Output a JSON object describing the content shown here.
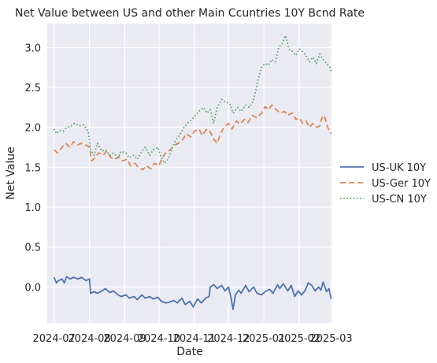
{
  "chart_data": {
    "type": "line",
    "title": "Net Value between US and other Main Ccuntries 10Y Bcnd Rate",
    "xlabel": "Date",
    "ylabel": "Net Value",
    "x_type": "date",
    "xlim": [
      "2024-06-25",
      "2025-03-02"
    ],
    "ylim": [
      -0.45,
      3.3
    ],
    "x_ticks": [
      {
        "value": "2024-07-01",
        "label": "2024-07"
      },
      {
        "value": "2024-08-01",
        "label": "2024-08"
      },
      {
        "value": "2024-09-01",
        "label": "2024-09"
      },
      {
        "value": "2024-10-01",
        "label": "2024-10"
      },
      {
        "value": "2024-11-01",
        "label": "2024-11"
      },
      {
        "value": "2024-12-01",
        "label": "2024-12"
      },
      {
        "value": "2025-01-01",
        "label": "2025-01"
      },
      {
        "value": "2025-02-01",
        "label": "2025-02"
      },
      {
        "value": "2025-03-01",
        "label": "2025-03"
      }
    ],
    "y_ticks": [
      {
        "value": 0.0,
        "label": "0.0"
      },
      {
        "value": 0.5,
        "label": "0.5"
      },
      {
        "value": 1.0,
        "label": "1.0"
      },
      {
        "value": 1.5,
        "label": "1.5"
      },
      {
        "value": 2.0,
        "label": "2.0"
      },
      {
        "value": 2.5,
        "label": "2.5"
      },
      {
        "value": 3.0,
        "label": "3.0"
      }
    ],
    "grid": true,
    "background": "#eaeaf2",
    "legend_position": "right",
    "series": [
      {
        "name": "US-UK 10Y",
        "color": "#4c72b0",
        "style": "solid",
        "points": [
          [
            "2024-07-01",
            0.12
          ],
          [
            "2024-07-03",
            0.05
          ],
          [
            "2024-07-05",
            0.08
          ],
          [
            "2024-07-08",
            0.1
          ],
          [
            "2024-07-10",
            0.05
          ],
          [
            "2024-07-12",
            0.13
          ],
          [
            "2024-07-15",
            0.1
          ],
          [
            "2024-07-18",
            0.12
          ],
          [
            "2024-07-22",
            0.1
          ],
          [
            "2024-07-25",
            0.12
          ],
          [
            "2024-07-29",
            0.08
          ],
          [
            "2024-08-01",
            0.1
          ],
          [
            "2024-08-02",
            -0.08
          ],
          [
            "2024-08-05",
            -0.06
          ],
          [
            "2024-08-08",
            -0.08
          ],
          [
            "2024-08-12",
            -0.05
          ],
          [
            "2024-08-15",
            -0.02
          ],
          [
            "2024-08-19",
            -0.07
          ],
          [
            "2024-08-22",
            -0.05
          ],
          [
            "2024-08-26",
            -0.1
          ],
          [
            "2024-08-29",
            -0.12
          ],
          [
            "2024-09-02",
            -0.1
          ],
          [
            "2024-09-05",
            -0.14
          ],
          [
            "2024-09-09",
            -0.12
          ],
          [
            "2024-09-12",
            -0.16
          ],
          [
            "2024-09-16",
            -0.1
          ],
          [
            "2024-09-19",
            -0.14
          ],
          [
            "2024-09-23",
            -0.12
          ],
          [
            "2024-09-26",
            -0.15
          ],
          [
            "2024-09-30",
            -0.13
          ],
          [
            "2024-10-03",
            -0.18
          ],
          [
            "2024-10-07",
            -0.2
          ],
          [
            "2024-10-10",
            -0.19
          ],
          [
            "2024-10-14",
            -0.17
          ],
          [
            "2024-10-17",
            -0.2
          ],
          [
            "2024-10-21",
            -0.14
          ],
          [
            "2024-10-24",
            -0.22
          ],
          [
            "2024-10-28",
            -0.18
          ],
          [
            "2024-10-31",
            -0.25
          ],
          [
            "2024-11-04",
            -0.15
          ],
          [
            "2024-11-07",
            -0.2
          ],
          [
            "2024-11-11",
            -0.14
          ],
          [
            "2024-11-14",
            -0.12
          ],
          [
            "2024-11-15",
            0.0
          ],
          [
            "2024-11-18",
            0.03
          ],
          [
            "2024-11-21",
            -0.02
          ],
          [
            "2024-11-25",
            0.02
          ],
          [
            "2024-11-28",
            -0.05
          ],
          [
            "2024-12-01",
            0.0
          ],
          [
            "2024-12-03",
            -0.12
          ],
          [
            "2024-12-05",
            -0.28
          ],
          [
            "2024-12-07",
            -0.1
          ],
          [
            "2024-12-10",
            -0.04
          ],
          [
            "2024-12-12",
            -0.08
          ],
          [
            "2024-12-16",
            0.02
          ],
          [
            "2024-12-19",
            -0.06
          ],
          [
            "2024-12-23",
            0.0
          ],
          [
            "2024-12-26",
            -0.08
          ],
          [
            "2024-12-30",
            -0.1
          ],
          [
            "2025-01-02",
            -0.06
          ],
          [
            "2025-01-06",
            -0.03
          ],
          [
            "2025-01-09",
            -0.08
          ],
          [
            "2025-01-13",
            0.03
          ],
          [
            "2025-01-15",
            -0.02
          ],
          [
            "2025-01-18",
            0.04
          ],
          [
            "2025-01-22",
            -0.05
          ],
          [
            "2025-01-25",
            0.02
          ],
          [
            "2025-01-28",
            -0.12
          ],
          [
            "2025-01-31",
            -0.05
          ],
          [
            "2025-02-03",
            -0.1
          ],
          [
            "2025-02-06",
            -0.05
          ],
          [
            "2025-02-09",
            0.05
          ],
          [
            "2025-02-12",
            0.02
          ],
          [
            "2025-02-15",
            -0.05
          ],
          [
            "2025-02-18",
            0.0
          ],
          [
            "2025-02-20",
            -0.04
          ],
          [
            "2025-02-22",
            0.06
          ],
          [
            "2025-02-25",
            -0.06
          ],
          [
            "2025-02-27",
            -0.02
          ],
          [
            "2025-02-29",
            -0.15
          ]
        ]
      },
      {
        "name": "US-Ger 10Y",
        "color": "#dd8452",
        "style": "dashed",
        "points": [
          [
            "2024-07-01",
            1.72
          ],
          [
            "2024-07-04",
            1.68
          ],
          [
            "2024-07-08",
            1.75
          ],
          [
            "2024-07-11",
            1.8
          ],
          [
            "2024-07-15",
            1.75
          ],
          [
            "2024-07-18",
            1.82
          ],
          [
            "2024-07-22",
            1.78
          ],
          [
            "2024-07-25",
            1.8
          ],
          [
            "2024-07-29",
            1.78
          ],
          [
            "2024-08-01",
            1.75
          ],
          [
            "2024-08-03",
            1.58
          ],
          [
            "2024-08-06",
            1.62
          ],
          [
            "2024-08-09",
            1.68
          ],
          [
            "2024-08-13",
            1.65
          ],
          [
            "2024-08-16",
            1.7
          ],
          [
            "2024-08-20",
            1.62
          ],
          [
            "2024-08-23",
            1.6
          ],
          [
            "2024-08-27",
            1.63
          ],
          [
            "2024-08-30",
            1.58
          ],
          [
            "2024-09-03",
            1.6
          ],
          [
            "2024-09-06",
            1.52
          ],
          [
            "2024-09-10",
            1.55
          ],
          [
            "2024-09-13",
            1.5
          ],
          [
            "2024-09-17",
            1.47
          ],
          [
            "2024-09-20",
            1.52
          ],
          [
            "2024-09-24",
            1.48
          ],
          [
            "2024-09-27",
            1.55
          ],
          [
            "2024-10-01",
            1.52
          ],
          [
            "2024-10-04",
            1.62
          ],
          [
            "2024-10-08",
            1.7
          ],
          [
            "2024-10-11",
            1.72
          ],
          [
            "2024-10-15",
            1.78
          ],
          [
            "2024-10-18",
            1.8
          ],
          [
            "2024-10-22",
            1.85
          ],
          [
            "2024-10-25",
            1.92
          ],
          [
            "2024-10-29",
            1.88
          ],
          [
            "2024-11-01",
            1.95
          ],
          [
            "2024-11-05",
            1.98
          ],
          [
            "2024-11-08",
            1.9
          ],
          [
            "2024-11-12",
            1.98
          ],
          [
            "2024-11-15",
            1.94
          ],
          [
            "2024-11-18",
            1.85
          ],
          [
            "2024-11-21",
            1.8
          ],
          [
            "2024-11-24",
            1.92
          ],
          [
            "2024-11-27",
            2.0
          ],
          [
            "2024-12-01",
            2.05
          ],
          [
            "2024-12-04",
            1.98
          ],
          [
            "2024-12-08",
            2.08
          ],
          [
            "2024-12-11",
            2.04
          ],
          [
            "2024-12-15",
            2.1
          ],
          [
            "2024-12-18",
            2.06
          ],
          [
            "2024-12-22",
            2.15
          ],
          [
            "2024-12-26",
            2.12
          ],
          [
            "2024-12-30",
            2.18
          ],
          [
            "2025-01-02",
            2.26
          ],
          [
            "2025-01-05",
            2.22
          ],
          [
            "2025-01-08",
            2.28
          ],
          [
            "2025-01-12",
            2.22
          ],
          [
            "2025-01-15",
            2.18
          ],
          [
            "2025-01-19",
            2.2
          ],
          [
            "2025-01-22",
            2.15
          ],
          [
            "2025-01-26",
            2.18
          ],
          [
            "2025-01-29",
            2.1
          ],
          [
            "2025-02-01",
            2.12
          ],
          [
            "2025-02-04",
            2.05
          ],
          [
            "2025-02-07",
            2.08
          ],
          [
            "2025-02-10",
            2.0
          ],
          [
            "2025-02-13",
            2.05
          ],
          [
            "2025-02-16",
            2.0
          ],
          [
            "2025-02-19",
            2.02
          ],
          [
            "2025-02-21",
            2.12
          ],
          [
            "2025-02-23",
            2.15
          ],
          [
            "2025-02-26",
            2.0
          ],
          [
            "2025-02-28",
            1.95
          ],
          [
            "2025-03-01",
            1.92
          ]
        ]
      },
      {
        "name": "US-CN 10Y",
        "color": "#55a868",
        "style": "dotted",
        "points": [
          [
            "2024-07-01",
            1.98
          ],
          [
            "2024-07-03",
            1.92
          ],
          [
            "2024-07-06",
            1.96
          ],
          [
            "2024-07-09",
            1.95
          ],
          [
            "2024-07-12",
            2.0
          ],
          [
            "2024-07-16",
            2.02
          ],
          [
            "2024-07-19",
            2.05
          ],
          [
            "2024-07-23",
            2.02
          ],
          [
            "2024-07-27",
            2.03
          ],
          [
            "2024-07-31",
            1.95
          ],
          [
            "2024-08-02",
            1.72
          ],
          [
            "2024-08-05",
            1.65
          ],
          [
            "2024-08-08",
            1.8
          ],
          [
            "2024-08-12",
            1.7
          ],
          [
            "2024-08-15",
            1.72
          ],
          [
            "2024-08-19",
            1.65
          ],
          [
            "2024-08-22",
            1.68
          ],
          [
            "2024-08-26",
            1.62
          ],
          [
            "2024-08-29",
            1.7
          ],
          [
            "2024-09-02",
            1.68
          ],
          [
            "2024-09-05",
            1.62
          ],
          [
            "2024-09-09",
            1.65
          ],
          [
            "2024-09-12",
            1.6
          ],
          [
            "2024-09-16",
            1.7
          ],
          [
            "2024-09-19",
            1.75
          ],
          [
            "2024-09-23",
            1.65
          ],
          [
            "2024-09-26",
            1.72
          ],
          [
            "2024-09-30",
            1.75
          ],
          [
            "2024-10-03",
            1.62
          ],
          [
            "2024-10-06",
            1.55
          ],
          [
            "2024-10-09",
            1.6
          ],
          [
            "2024-10-12",
            1.72
          ],
          [
            "2024-10-16",
            1.85
          ],
          [
            "2024-10-19",
            1.9
          ],
          [
            "2024-10-23",
            2.0
          ],
          [
            "2024-10-26",
            2.05
          ],
          [
            "2024-10-30",
            2.1
          ],
          [
            "2024-11-02",
            2.15
          ],
          [
            "2024-11-05",
            2.2
          ],
          [
            "2024-11-09",
            2.25
          ],
          [
            "2024-11-12",
            2.18
          ],
          [
            "2024-11-15",
            2.22
          ],
          [
            "2024-11-18",
            2.05
          ],
          [
            "2024-11-21",
            2.25
          ],
          [
            "2024-11-25",
            2.35
          ],
          [
            "2024-11-28",
            2.32
          ],
          [
            "2024-12-02",
            2.3
          ],
          [
            "2024-12-05",
            2.18
          ],
          [
            "2024-12-09",
            2.25
          ],
          [
            "2024-12-12",
            2.2
          ],
          [
            "2024-12-16",
            2.28
          ],
          [
            "2024-12-19",
            2.25
          ],
          [
            "2024-12-22",
            2.3
          ],
          [
            "2024-12-24",
            2.4
          ],
          [
            "2024-12-27",
            2.6
          ],
          [
            "2024-12-30",
            2.75
          ],
          [
            "2025-01-02",
            2.8
          ],
          [
            "2025-01-05",
            2.78
          ],
          [
            "2025-01-08",
            2.85
          ],
          [
            "2025-01-11",
            2.82
          ],
          [
            "2025-01-14",
            3.0
          ],
          [
            "2025-01-17",
            3.05
          ],
          [
            "2025-01-20",
            3.15
          ],
          [
            "2025-01-23",
            2.98
          ],
          [
            "2025-01-26",
            2.95
          ],
          [
            "2025-01-29",
            2.9
          ],
          [
            "2025-02-01",
            2.98
          ],
          [
            "2025-02-04",
            2.95
          ],
          [
            "2025-02-07",
            2.9
          ],
          [
            "2025-02-10",
            2.82
          ],
          [
            "2025-02-13",
            2.88
          ],
          [
            "2025-02-16",
            2.8
          ],
          [
            "2025-02-19",
            2.92
          ],
          [
            "2025-02-22",
            2.85
          ],
          [
            "2025-02-25",
            2.8
          ],
          [
            "2025-02-28",
            2.75
          ],
          [
            "2025-03-01",
            2.68
          ]
        ]
      }
    ]
  }
}
